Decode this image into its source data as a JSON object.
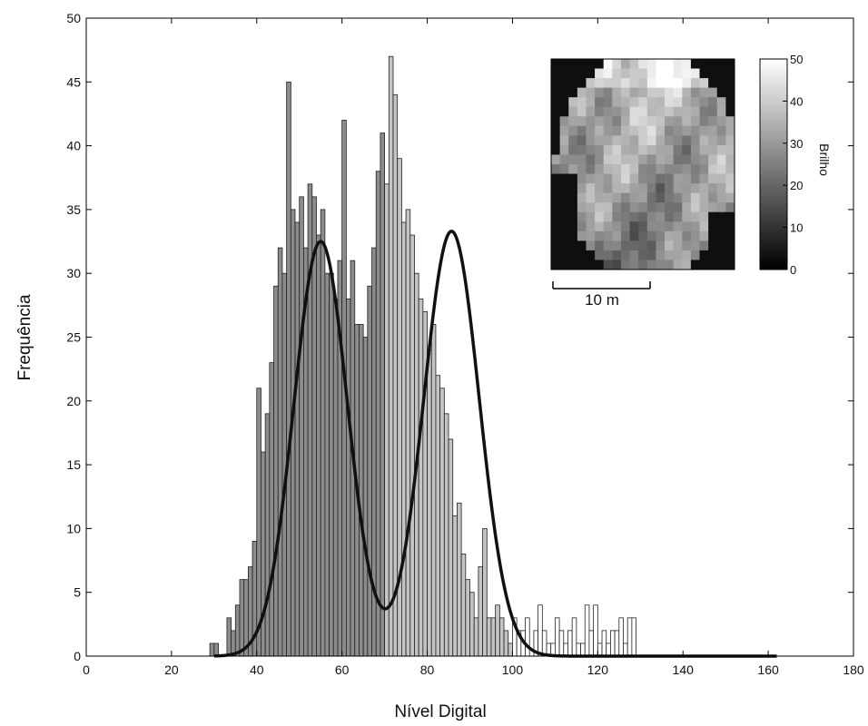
{
  "chart_data": {
    "type": "bar",
    "title": "",
    "xlabel": "Nível Digital",
    "ylabel": "Frequência",
    "xlim": [
      0,
      180
    ],
    "ylim": [
      0,
      50
    ],
    "xticks": [
      0,
      20,
      40,
      60,
      80,
      100,
      120,
      140,
      160,
      180
    ],
    "yticks": [
      0,
      5,
      10,
      15,
      20,
      25,
      30,
      35,
      40,
      45,
      50
    ],
    "grid": false,
    "bins_start": 29,
    "bin_width": 1,
    "values": [
      1,
      1,
      0,
      0,
      3,
      2,
      4,
      6,
      6,
      7,
      9,
      21,
      16,
      19,
      23,
      29,
      32,
      30,
      45,
      35,
      34,
      36,
      32,
      37,
      36,
      33,
      35,
      30,
      30,
      28,
      31,
      42,
      28,
      31,
      26,
      26,
      25,
      29,
      32,
      38,
      41,
      37,
      47,
      44,
      39,
      34,
      35,
      33,
      30,
      28,
      27,
      24,
      26,
      22,
      21,
      19,
      17,
      11,
      12,
      8,
      6,
      5,
      3,
      7,
      10,
      3,
      3,
      4,
      3,
      2,
      1,
      3,
      2,
      2,
      3,
      0,
      2,
      4,
      2,
      1,
      1,
      3,
      2,
      1,
      2,
      3,
      1,
      1,
      4,
      2,
      4,
      1,
      2,
      1,
      2,
      2,
      3,
      1,
      3,
      3
    ],
    "curve": {
      "name": "",
      "components": [
        {
          "amplitude": 32.5,
          "mean": 55,
          "sd": 6.3
        },
        {
          "amplitude": 33.3,
          "mean": 85.7,
          "sd": 6.5
        }
      ],
      "x_range": [
        30,
        162
      ]
    },
    "bar_color_split": 70
  },
  "inset": {
    "scale_bar_label": "10 m",
    "colorbar_label": "Brilho",
    "colorbar_ticks": [
      "50",
      "40",
      "30",
      "20",
      "10",
      "0"
    ],
    "colorbar_range": [
      0,
      50
    ],
    "grid_rows": 22,
    "grid_cols": 21
  }
}
